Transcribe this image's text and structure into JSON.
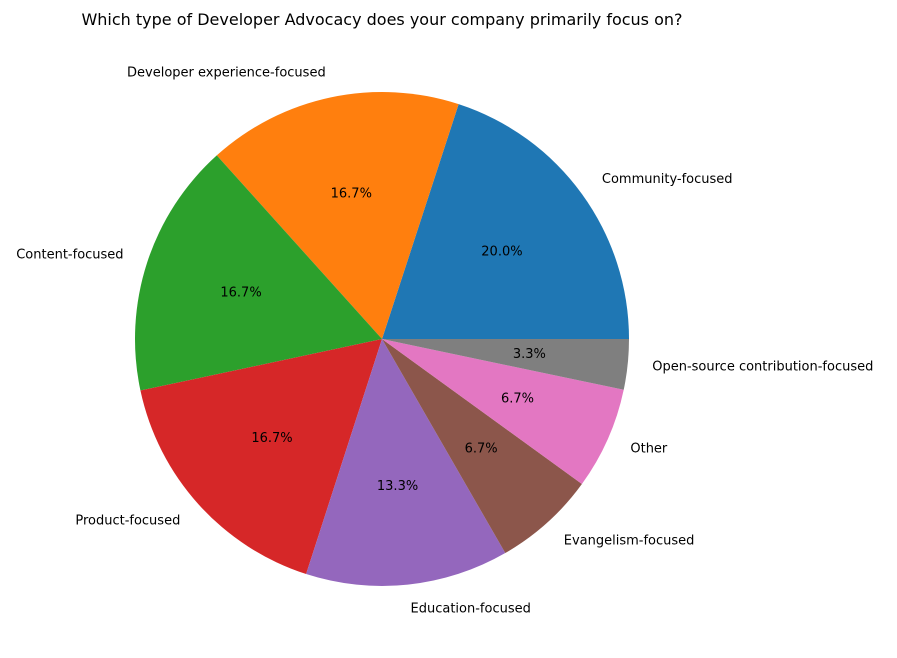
{
  "chart_data": {
    "type": "pie",
    "title": "Which type of Developer Advocacy does your company primarily focus on?",
    "categories": [
      "Community-focused",
      "Developer experience-focused",
      "Content-focused",
      "Product-focused",
      "Education-focused",
      "Evangelism-focused",
      "Other",
      "Open-source contribution-focused"
    ],
    "values": [
      20.0,
      16.7,
      16.7,
      16.7,
      13.3,
      6.7,
      6.7,
      3.3
    ],
    "value_labels": [
      "20.0%",
      "16.7%",
      "16.7%",
      "16.7%",
      "13.3%",
      "6.7%",
      "6.7%",
      "3.3%"
    ],
    "colors": [
      "#1f77b4",
      "#ff7f0e",
      "#2ca02c",
      "#d62728",
      "#9467bd",
      "#8c564b",
      "#e377c2",
      "#7f7f7f"
    ],
    "start_angle_deg": 0,
    "direction": "counterclockwise",
    "legend": "none"
  }
}
